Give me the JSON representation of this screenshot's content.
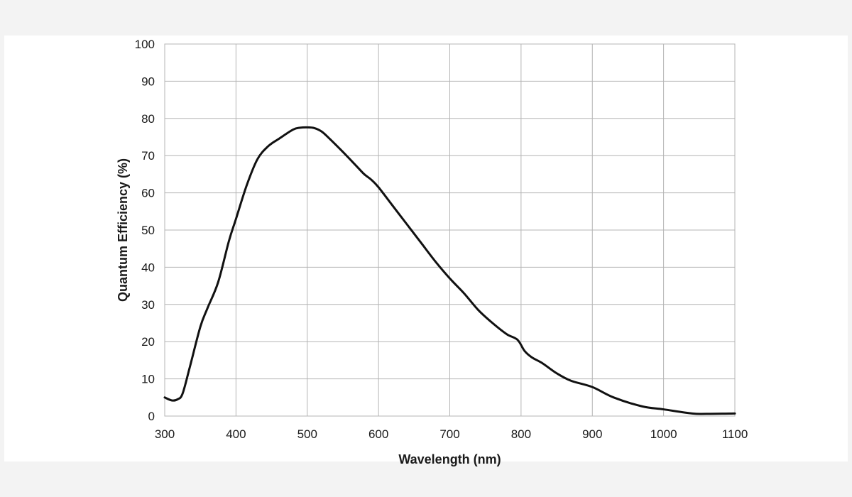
{
  "chart_data": {
    "type": "line",
    "title": "",
    "xlabel": "Wavelength (nm)",
    "ylabel": "Quantum Efficiency (%)",
    "xlim": [
      300,
      1100
    ],
    "ylim": [
      0,
      100
    ],
    "xticks": [
      300,
      400,
      500,
      600,
      700,
      800,
      900,
      1000,
      1100
    ],
    "yticks": [
      0,
      10,
      20,
      30,
      40,
      50,
      60,
      70,
      80,
      90,
      100
    ],
    "xtick_labels": [
      "300",
      "400",
      "500",
      "600",
      "700",
      "800",
      "900",
      "1000",
      "1100"
    ],
    "ytick_labels": [
      "0",
      "10",
      "20",
      "30",
      "40",
      "50",
      "60",
      "70",
      "80",
      "90",
      "100"
    ],
    "grid": true,
    "legend": "none",
    "series": [
      {
        "name": "Quantum Efficiency",
        "color": "#111111",
        "x": [
          300,
          310,
          318,
          325,
          335,
          350,
          360,
          375,
          390,
          400,
          415,
          430,
          445,
          460,
          480,
          490,
          500,
          510,
          520,
          530,
          550,
          570,
          580,
          590,
          600,
          620,
          640,
          660,
          680,
          700,
          720,
          740,
          760,
          780,
          795,
          805,
          815,
          830,
          850,
          870,
          900,
          930,
          970,
          1000,
          1040,
          1060,
          1100
        ],
        "values": [
          5,
          4.2,
          4.5,
          6,
          13,
          24,
          29,
          36,
          47,
          53,
          62,
          69,
          72.5,
          74.5,
          77,
          77.5,
          77.6,
          77.4,
          76.5,
          74.8,
          71,
          67,
          65,
          63.5,
          61.5,
          56.5,
          51.5,
          46.5,
          41.5,
          37,
          33,
          28.5,
          25,
          22,
          20.5,
          17.5,
          15.8,
          14.2,
          11.5,
          9.5,
          7.8,
          5,
          2.6,
          1.8,
          0.7,
          0.6,
          0.7
        ]
      }
    ]
  }
}
